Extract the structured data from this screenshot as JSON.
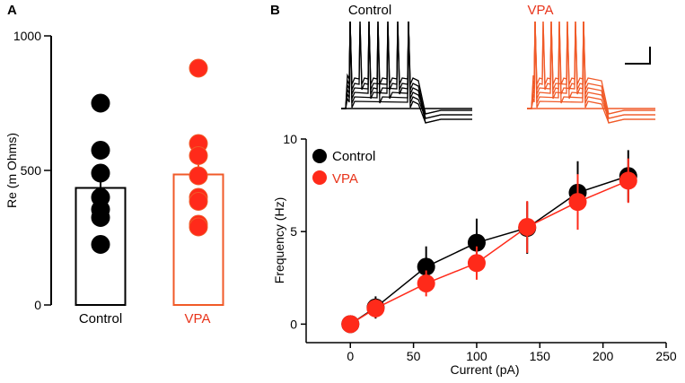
{
  "colors": {
    "control": "#000000",
    "vpa_point": "#ff2a1a",
    "vpa_trace": "#f05a28",
    "vpa_label": "#e8331a",
    "axis": "#000000"
  },
  "chart_data": [
    {
      "panel": "A",
      "type": "bar",
      "title": "",
      "ylabel": "Re (m Ohms)",
      "xlabel": "",
      "ylim": [
        0,
        1000
      ],
      "yticks": [
        0,
        500,
        1000
      ],
      "categories": [
        "Control",
        "VPA"
      ],
      "values": [
        435,
        485
      ],
      "errors": [
        60,
        70
      ],
      "points": [
        [
          750,
          575,
          490,
          400,
          355,
          325,
          225
        ],
        [
          880,
          600,
          555,
          480,
          400,
          385,
          300,
          290
        ]
      ],
      "legend": "none",
      "grid": false
    },
    {
      "panel": "B",
      "type": "line",
      "title": "",
      "xlabel": "Current (pA)",
      "ylabel": "Frequency (Hz)",
      "xlim": [
        -35,
        250
      ],
      "ylim": [
        -1,
        10
      ],
      "xticks": [
        0,
        50,
        100,
        150,
        200,
        250
      ],
      "yticks": [
        0,
        5,
        10
      ],
      "x": [
        0,
        20,
        60,
        100,
        140,
        180,
        220
      ],
      "series": [
        {
          "name": "Control",
          "values": [
            0,
            0.9,
            3.1,
            4.4,
            5.2,
            7.1,
            8.0
          ],
          "errors": [
            0,
            0.6,
            1.1,
            1.3,
            1.4,
            1.7,
            1.4
          ]
        },
        {
          "name": "VPA",
          "values": [
            0,
            0.85,
            2.2,
            3.3,
            5.25,
            6.6,
            7.75
          ],
          "errors": [
            0,
            0.5,
            0.7,
            0.9,
            1.4,
            1.5,
            1.2
          ]
        }
      ],
      "legend": "top-left",
      "grid": false,
      "trace_labels": [
        "Control",
        "VPA"
      ]
    }
  ],
  "panel_labels": [
    "A",
    "B"
  ]
}
